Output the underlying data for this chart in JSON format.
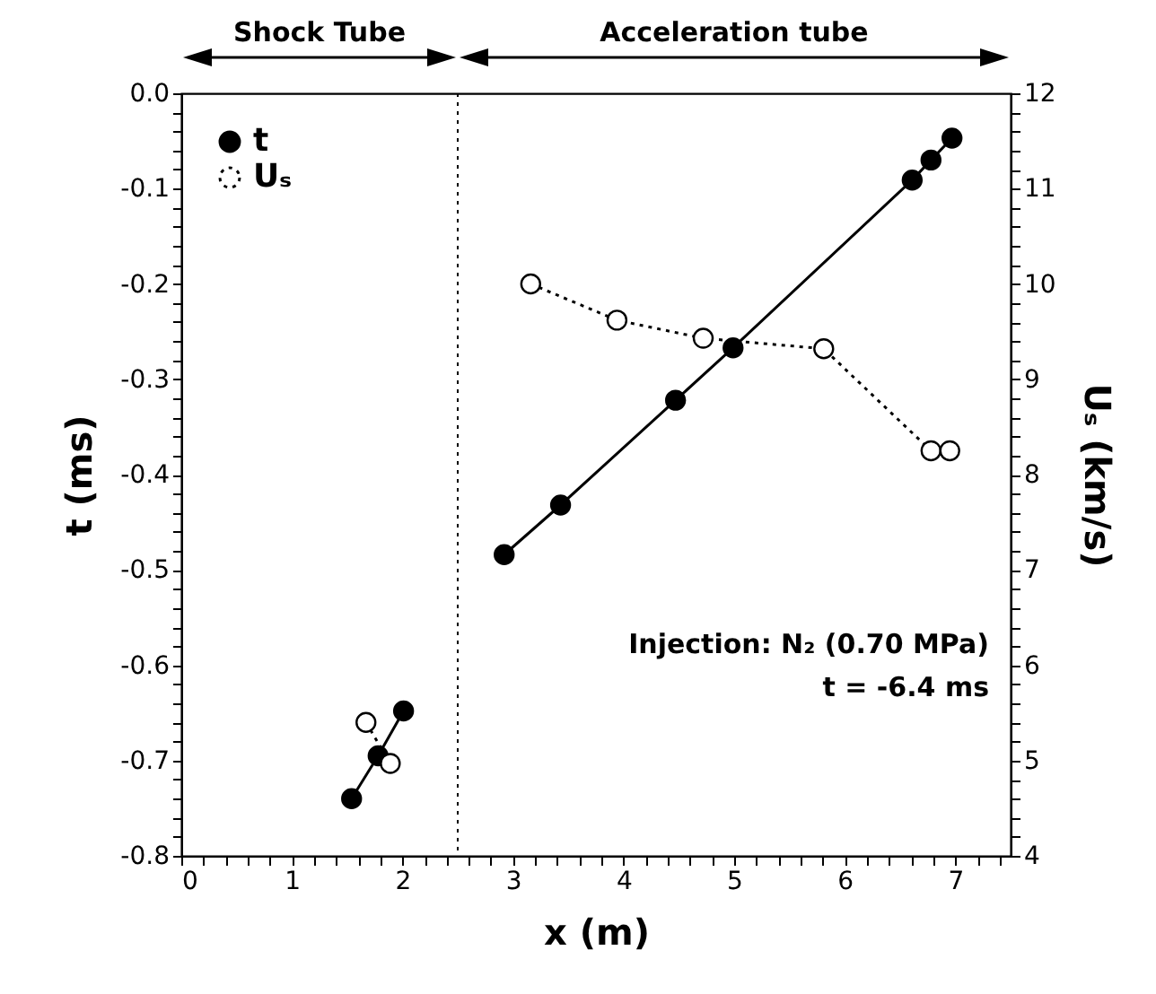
{
  "chart_data": {
    "type": "line",
    "xlabel": "x (m)",
    "ylabel": "t (ms)",
    "y2label": "Uₛ (km/s)",
    "series": [
      {
        "name": "t",
        "color": "#000000",
        "marker": "circle",
        "line_style": "solid",
        "x": [
          1.54,
          1.78,
          2.01,
          2.5,
          2.92,
          3.43,
          4.47,
          4.99,
          6.61,
          6.78,
          6.97
        ],
        "values": [
          -0.74,
          -0.695,
          -0.648,
          null,
          -0.484,
          -0.432,
          -0.322,
          -0.267,
          -0.091,
          -0.07,
          -0.047
        ]
      },
      {
        "name": "Uₛ",
        "color": "#000000",
        "marker": "circle",
        "line_style": "dotted",
        "axis": "y2",
        "x": [
          1.67,
          1.89,
          2.5,
          3.16,
          3.94,
          4.72,
          5.81,
          6.78,
          6.95
        ],
        "values": [
          5.4,
          4.97,
          null,
          10.0,
          9.62,
          9.43,
          9.32,
          8.25,
          8.25
        ]
      }
    ],
    "xlim": [
      0,
      7.5
    ],
    "xticks": [
      0,
      {
        "value": 0.2,
        "label": null
      },
      {
        "value": 0.4,
        "label": null
      },
      {
        "value": 0.6,
        "label": null
      },
      {
        "value": 0.8,
        "label": null
      },
      1,
      {
        "value": 1.2,
        "label": null
      },
      {
        "value": 1.4,
        "label": null
      },
      {
        "value": 1.6,
        "label": null
      },
      {
        "value": 1.8,
        "label": null
      },
      2,
      {
        "value": 2.2,
        "label": null
      },
      {
        "value": 2.4,
        "label": null
      },
      {
        "value": 2.6,
        "label": null
      },
      {
        "value": 2.8,
        "label": null
      },
      3,
      {
        "value": 3.2,
        "label": null
      },
      {
        "value": 3.4,
        "label": null
      },
      {
        "value": 3.6,
        "label": null
      },
      {
        "value": 3.8,
        "label": null
      },
      4,
      {
        "value": 4.2,
        "label": null
      },
      {
        "value": 4.4,
        "label": null
      },
      {
        "value": 4.6,
        "label": null
      },
      {
        "value": 4.8,
        "label": null
      },
      5,
      {
        "value": 5.2,
        "label": null
      },
      {
        "value": 5.4,
        "label": null
      },
      {
        "value": 5.6,
        "label": null
      },
      {
        "value": 5.8,
        "label": null
      },
      6,
      {
        "value": 6.2,
        "label": null
      },
      {
        "value": 6.4,
        "label": null
      },
      {
        "value": 6.6,
        "label": null
      },
      {
        "value": 6.8,
        "label": null
      },
      7,
      {
        "value": 7.2,
        "label": null
      },
      {
        "value": 7.4,
        "label": null
      }
    ],
    "ylim": [
      -0.8,
      0
    ],
    "yticks": [
      -0.8,
      {
        "value": -0.78,
        "label": null
      },
      {
        "value": -0.76,
        "label": null
      },
      {
        "value": -0.74,
        "label": null
      },
      {
        "value": -0.72,
        "label": null
      },
      -0.7,
      {
        "value": -0.68,
        "label": null
      },
      {
        "value": -0.66,
        "label": null
      },
      {
        "value": -0.64,
        "label": null
      },
      {
        "value": -0.62,
        "label": null
      },
      -0.6,
      {
        "value": -0.58,
        "label": null
      },
      {
        "value": -0.56,
        "label": null
      },
      {
        "value": -0.54,
        "label": null
      },
      {
        "value": -0.52,
        "label": null
      },
      -0.5,
      {
        "value": -0.48,
        "label": null
      },
      {
        "value": -0.46,
        "label": null
      },
      {
        "value": -0.44,
        "label": null
      },
      {
        "value": -0.42,
        "label": null
      },
      -0.4,
      {
        "value": -0.38,
        "label": null
      },
      {
        "value": -0.36,
        "label": null
      },
      {
        "value": -0.34,
        "label": null
      },
      {
        "value": -0.32,
        "label": null
      },
      -0.3,
      {
        "value": -0.28,
        "label": null
      },
      {
        "value": -0.26,
        "label": null
      },
      {
        "value": -0.24,
        "label": null
      },
      {
        "value": -0.22,
        "label": null
      },
      -0.2,
      {
        "value": -0.18,
        "label": null
      },
      {
        "value": -0.16,
        "label": null
      },
      {
        "value": -0.14,
        "label": null
      },
      {
        "value": -0.12,
        "label": null
      },
      -0.1,
      {
        "value": -0.08,
        "label": null
      },
      {
        "value": -0.06,
        "label": null
      },
      {
        "value": -0.04,
        "label": null
      },
      {
        "value": -0.02,
        "label": null
      },
      {
        "value": 0,
        "label": "0.0"
      }
    ],
    "y2lim": [
      4,
      12
    ],
    "y2ticks": [
      4,
      {
        "value": 4.2,
        "label": null
      },
      {
        "value": 4.4,
        "label": null
      },
      {
        "value": 4.6,
        "label": null
      },
      {
        "value": 4.8,
        "label": null
      },
      5,
      {
        "value": 5.2,
        "label": null
      },
      {
        "value": 5.4,
        "label": null
      },
      {
        "value": 5.6,
        "label": null
      },
      {
        "value": 5.8,
        "label": null
      },
      6,
      {
        "value": 6.2,
        "label": null
      },
      {
        "value": 6.4,
        "label": null
      },
      {
        "value": 6.6,
        "label": null
      },
      {
        "value": 6.8,
        "label": null
      },
      7,
      {
        "value": 7.2,
        "label": null
      },
      {
        "value": 7.4,
        "label": null
      },
      {
        "value": 7.6,
        "label": null
      },
      {
        "value": 7.8,
        "label": null
      },
      8,
      {
        "value": 8.2,
        "label": null
      },
      {
        "value": 8.4,
        "label": null
      },
      {
        "value": 8.6,
        "label": null
      },
      {
        "value": 8.8,
        "label": null
      },
      9,
      {
        "value": 9.2,
        "label": null
      },
      {
        "value": 9.4,
        "label": null
      },
      {
        "value": 9.6,
        "label": null
      },
      {
        "value": 9.8,
        "label": null
      },
      10,
      {
        "value": 10.2,
        "label": null
      },
      {
        "value": 10.4,
        "label": null
      },
      {
        "value": 10.6,
        "label": null
      },
      {
        "value": 10.8,
        "label": null
      },
      11,
      {
        "value": 11.2,
        "label": null
      },
      {
        "value": 11.4,
        "label": null
      },
      {
        "value": 11.6,
        "label": null
      },
      {
        "value": 11.8,
        "label": null
      },
      12
    ],
    "ref_lines": [
      {
        "axis": "x",
        "value": 2.5,
        "line_style": "dotted"
      }
    ],
    "annotations": [
      "Shock Tube",
      "Acceleration tube",
      "Injection: N₂ (0.70 MPa)",
      "t = -6.4 ms"
    ],
    "legend": "top left",
    "grid": false
  }
}
